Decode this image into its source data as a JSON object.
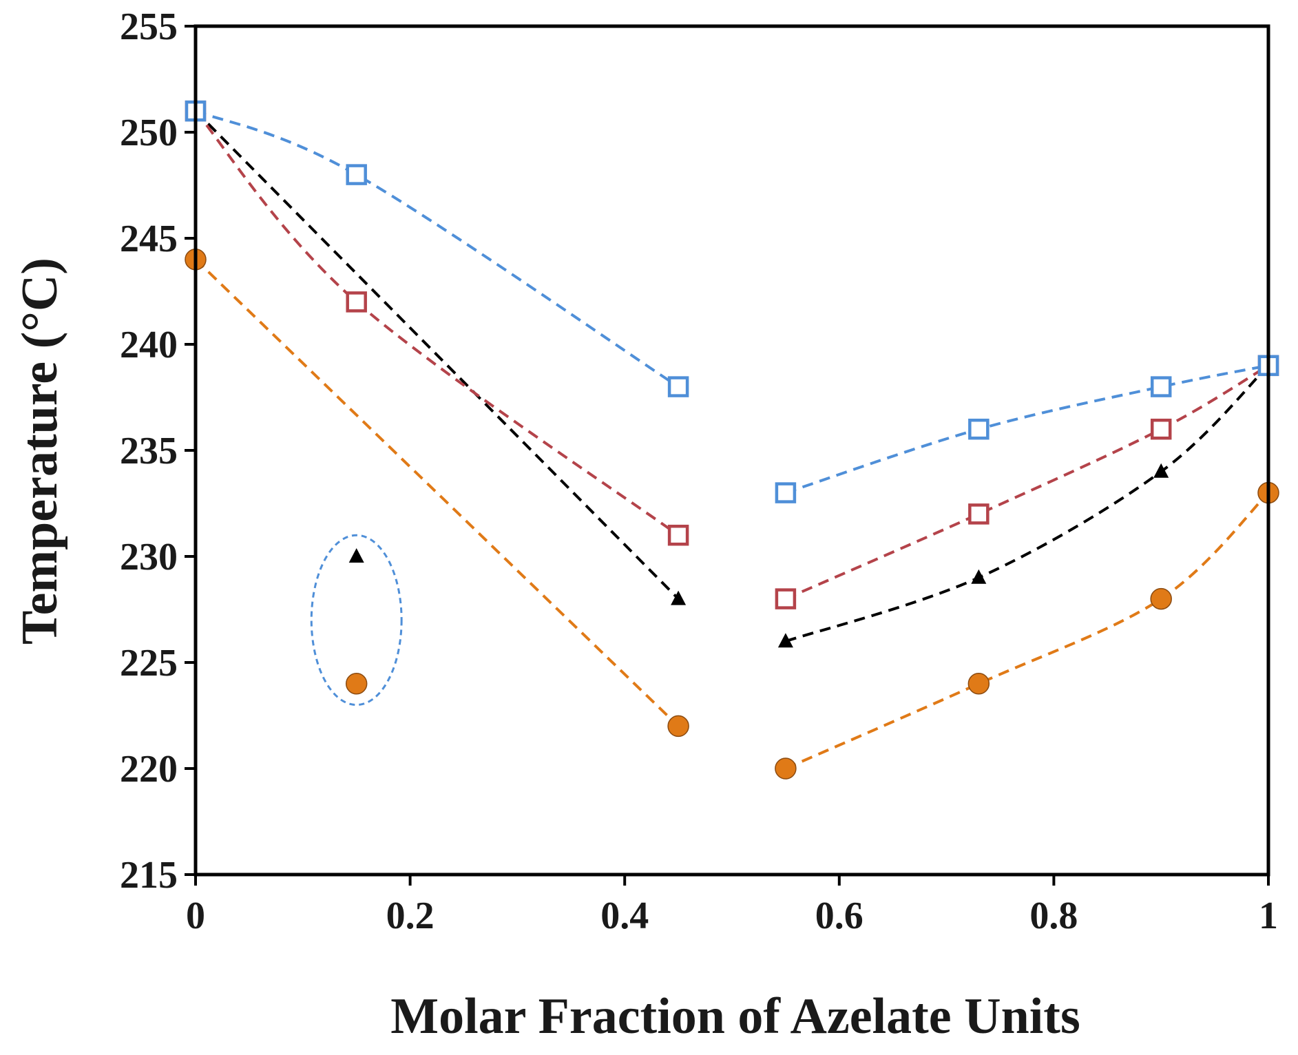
{
  "chart_data": {
    "type": "scatter",
    "title": "",
    "xlabel": "Molar Fraction of Azelate Units",
    "ylabel": "Temperature (°C)",
    "xlim": [
      0,
      1
    ],
    "ylim": [
      215,
      255
    ],
    "x_ticks": [
      0,
      0.2,
      0.4,
      0.6,
      0.8,
      1
    ],
    "x_tick_labels": [
      "0",
      "0.2",
      "0.4",
      "0.6",
      "0.8",
      "1"
    ],
    "y_ticks": [
      215,
      220,
      225,
      230,
      235,
      240,
      245,
      250,
      255
    ],
    "y_tick_labels": [
      "215",
      "220",
      "225",
      "230",
      "235",
      "240",
      "245",
      "250",
      "255"
    ],
    "grid": false,
    "legend": "none",
    "series": [
      {
        "name": "blue-open-squares",
        "marker": "open-square",
        "color": "#4f8fd8",
        "segments": [
          [
            [
              0,
              251
            ],
            [
              0.15,
              248
            ],
            [
              0.45,
              238
            ]
          ],
          [
            [
              0.55,
              233
            ],
            [
              0.73,
              236
            ],
            [
              0.9,
              238
            ],
            [
              1.0,
              239
            ]
          ]
        ]
      },
      {
        "name": "red-open-squares",
        "marker": "open-square",
        "color": "#b4434a",
        "segments": [
          [
            [
              0,
              251
            ],
            [
              0.15,
              242
            ],
            [
              0.45,
              231
            ]
          ],
          [
            [
              0.55,
              228
            ],
            [
              0.73,
              232
            ],
            [
              0.9,
              236
            ],
            [
              1.0,
              239
            ]
          ]
        ]
      },
      {
        "name": "black-triangles",
        "marker": "triangle",
        "color": "#000000",
        "segments": [
          [
            [
              0,
              251
            ],
            [
              0.45,
              228
            ]
          ],
          [
            [
              0.55,
              226
            ],
            [
              0.73,
              229
            ],
            [
              0.9,
              234
            ],
            [
              1.0,
              239
            ]
          ]
        ],
        "extra_points": [
          [
            0.15,
            230
          ]
        ]
      },
      {
        "name": "orange-circles",
        "marker": "circle",
        "color": "#e07a17",
        "segments": [
          [
            [
              0,
              244
            ],
            [
              0.45,
              222
            ]
          ],
          [
            [
              0.55,
              220
            ],
            [
              0.73,
              224
            ],
            [
              0.9,
              228
            ],
            [
              1.0,
              233
            ]
          ]
        ],
        "extra_points": [
          [
            0.15,
            224
          ]
        ]
      }
    ],
    "annotations": [
      {
        "type": "dashed-ellipse",
        "color": "#4f8fd8",
        "center": [
          0.15,
          227
        ],
        "x_radius": 0.042,
        "y_radius": 4
      }
    ]
  }
}
